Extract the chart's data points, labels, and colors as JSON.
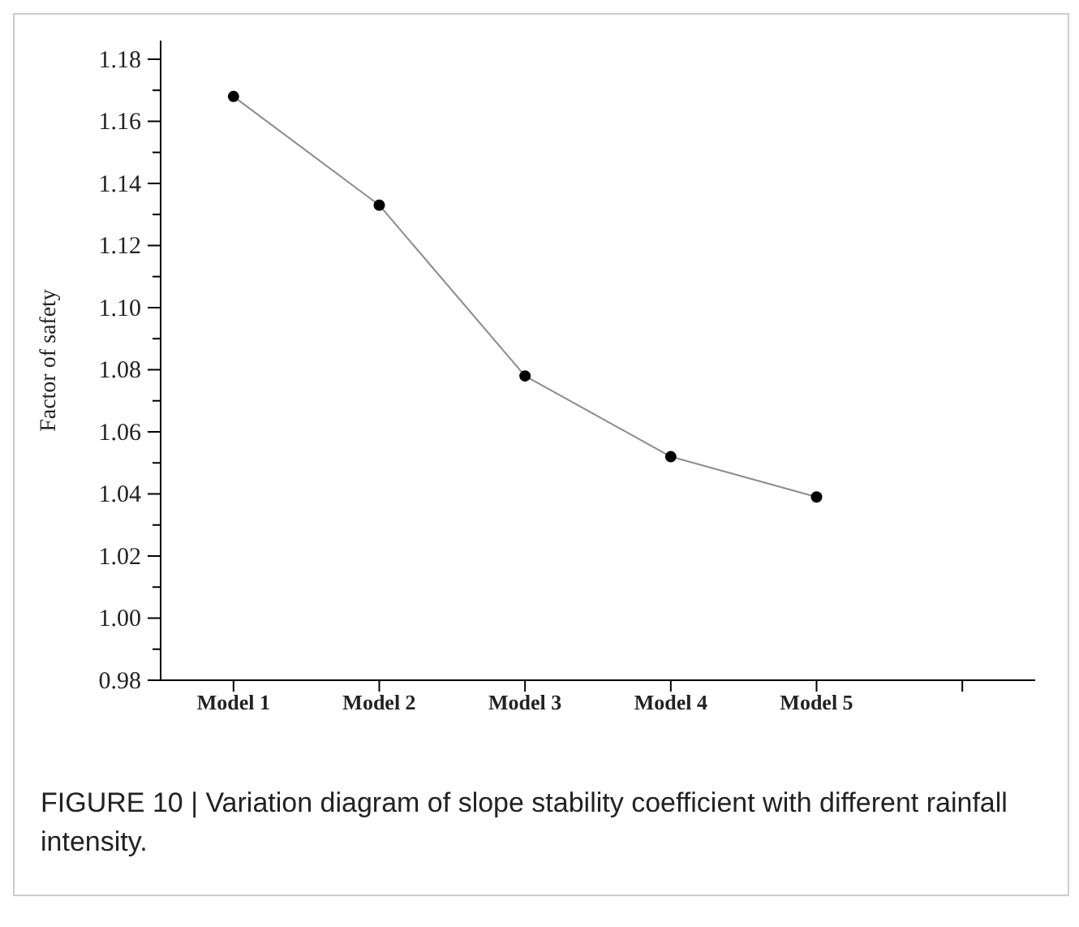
{
  "chart_data": {
    "type": "line",
    "ylabel": "Factor of safety",
    "categories": [
      "Model 1",
      "Model 2",
      "Model 3",
      "Model 4",
      "Model 5",
      null
    ],
    "series": [
      {
        "color": "#8c8c8c",
        "values": [
          1.168,
          1.133,
          1.078,
          1.052,
          1.039,
          null
        ]
      }
    ],
    "ylim": [
      0.98,
      1.186
    ],
    "yticks": [
      {
        "value": 0.98,
        "label": "0.98"
      },
      {
        "value": 0.99,
        "label": null
      },
      {
        "value": 1.0,
        "label": "1.00"
      },
      {
        "value": 1.01,
        "label": null
      },
      {
        "value": 1.02,
        "label": "1.02"
      },
      {
        "value": 1.03,
        "label": null
      },
      {
        "value": 1.04,
        "label": "1.04"
      },
      {
        "value": 1.05,
        "label": null
      },
      {
        "value": 1.06,
        "label": "1.06"
      },
      {
        "value": 1.07,
        "label": null
      },
      {
        "value": 1.08,
        "label": "1.08"
      },
      {
        "value": 1.09,
        "label": null
      },
      {
        "value": 1.1,
        "label": "1.10"
      },
      {
        "value": 1.11,
        "label": null
      },
      {
        "value": 1.12,
        "label": "1.12"
      },
      {
        "value": 1.13,
        "label": null
      },
      {
        "value": 1.14,
        "label": "1.14"
      },
      {
        "value": 1.15,
        "label": null
      },
      {
        "value": 1.16,
        "label": "1.16"
      },
      {
        "value": 1.17,
        "label": null
      },
      {
        "value": 1.18,
        "label": "1.18"
      }
    ],
    "marker": "circle",
    "line_style": "solid",
    "annotations": [
      "FIGURE 10 | Variation diagram of slope stability coefficient with different rainfall intensity."
    ]
  }
}
